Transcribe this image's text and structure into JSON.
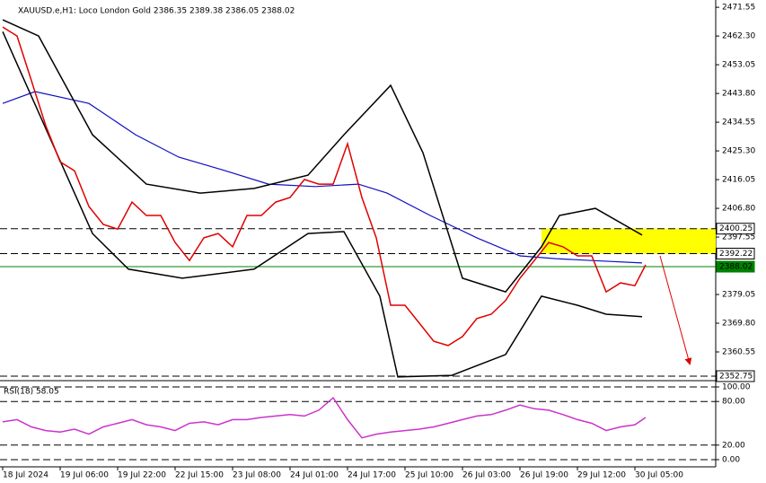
{
  "chart_data": [
    {
      "type": "line",
      "title": "XAUUSD.e,H1:  Loco London Gold  2386.35 2389.38 2386.05 2388.02",
      "xlim": [
        -0.75,
        198.5
      ],
      "ylim": [
        2351.3,
        2473.9
      ],
      "xticks": [
        {
          "value": 0,
          "label": "18 Jul 2024"
        },
        {
          "value": 16,
          "label": "19 Jul 06:00"
        },
        {
          "value": 32,
          "label": "19 Jul 22:00"
        },
        {
          "value": 48,
          "label": "22 Jul 15:00"
        },
        {
          "value": 64,
          "label": "23 Jul 08:00"
        },
        {
          "value": 80,
          "label": "24 Jul 01:00"
        },
        {
          "value": 96,
          "label": "24 Jul 17:00"
        },
        {
          "value": 112,
          "label": "25 Jul 10:00"
        },
        {
          "value": 128,
          "label": "26 Jul 03:00"
        },
        {
          "value": 144,
          "label": "26 Jul 19:00"
        },
        {
          "value": 160,
          "label": "29 Jul 12:00"
        },
        {
          "value": 176,
          "label": "30 Jul 05:00"
        }
      ],
      "yticks": [
        2471.55,
        {
          "value": 2462.3,
          "label": "2462.30"
        },
        2453.05,
        {
          "value": 2443.8,
          "label": "2443.80"
        },
        2434.55,
        {
          "value": 2425.3,
          "label": "2425.30"
        },
        2416.05,
        {
          "value": 2406.8,
          "label": "2406.80"
        },
        2397.55,
        2379.05,
        {
          "value": 2369.8,
          "label": "2369.80"
        },
        2360.55
      ],
      "series": [
        {
          "color": "#1010c0",
          "x": [
            0,
            9,
            24,
            37,
            49,
            62,
            74,
            87,
            99,
            107,
            119,
            132,
            144,
            154,
            164,
            178
          ],
          "values": [
            2440.6,
            2444.4,
            2440.6,
            2430.5,
            2423.3,
            2418.9,
            2414.6,
            2413.8,
            2414.6,
            2411.7,
            2404.5,
            2397.3,
            2391.5,
            2390.6,
            2390.0,
            2389.2
          ]
        },
        {
          "color": "#000000",
          "x": [
            0,
            10,
            25,
            40,
            55,
            70,
            85,
            95,
            108,
            117,
            128,
            140,
            150,
            155,
            165,
            178
          ],
          "values": [
            2467.5,
            2462.3,
            2430.5,
            2414.6,
            2411.7,
            2413.2,
            2417.5,
            2430.5,
            2446.4,
            2424.7,
            2384.3,
            2379.9,
            2394.4,
            2404.5,
            2406.8,
            2398.2
          ]
        },
        {
          "color": "#000000",
          "x": [
            0,
            15,
            25,
            35,
            50,
            70,
            85,
            95,
            105,
            110,
            125,
            140,
            150,
            160,
            168,
            178
          ],
          "values": [
            2463.7,
            2424.7,
            2398.7,
            2387.2,
            2384.3,
            2387.2,
            2398.7,
            2399.3,
            2378.5,
            2352.5,
            2353.0,
            2359.7,
            2378.5,
            2375.6,
            2372.7,
            2371.9
          ]
        },
        {
          "color": "#e00000",
          "x": [
            0,
            4,
            8,
            12,
            16,
            20,
            24,
            28,
            32,
            36,
            40,
            44,
            48,
            52,
            56,
            60,
            64,
            68,
            72,
            76,
            80,
            84,
            88,
            92,
            96,
            100,
            104,
            108,
            112,
            116,
            120,
            124,
            128,
            132,
            136,
            140,
            144,
            148,
            152,
            156,
            160,
            164,
            168,
            172,
            176,
            179
          ],
          "values": [
            2465.2,
            2462.3,
            2447.9,
            2433.4,
            2421.8,
            2418.9,
            2407.4,
            2401.6,
            2400.1,
            2408.8,
            2404.5,
            2404.5,
            2395.8,
            2390.0,
            2397.3,
            2398.7,
            2394.4,
            2404.5,
            2404.5,
            2408.8,
            2410.3,
            2416.1,
            2414.6,
            2414.6,
            2427.6,
            2410.3,
            2397.3,
            2375.6,
            2375.6,
            2369.8,
            2364.0,
            2362.6,
            2365.5,
            2371.3,
            2372.7,
            2377.1,
            2384.3,
            2390.0,
            2395.8,
            2394.4,
            2391.5,
            2391.5,
            2379.9,
            2382.8,
            2381.9,
            2388.6
          ]
        }
      ],
      "levels": [
        {
          "value": 2400.25,
          "color": "#000000",
          "style": "dashed"
        },
        {
          "value": 2392.22,
          "color": "#000000",
          "style": "dashed"
        },
        {
          "value": 2388.02,
          "color": "#008000",
          "style": "solid"
        },
        {
          "value": 2352.75,
          "color": "#000000",
          "style": "dashed"
        }
      ],
      "zone": {
        "color": "#ffff00",
        "x": [
          150,
          198.5
        ],
        "y": [
          2392.22,
          2400.25
        ]
      }
    },
    {
      "type": "line",
      "title": "RSI(18) 58.05",
      "xlim": [
        -0.75,
        198.5
      ],
      "ylim": [
        -9.9,
        103.7
      ],
      "yticks": [
        {
          "value": 100,
          "label": "100.00"
        },
        {
          "value": 80,
          "label": "80.00"
        },
        {
          "value": 20,
          "label": "20.00"
        },
        {
          "value": 0,
          "label": "0.00"
        }
      ],
      "series": [
        {
          "color": "#cc33cc",
          "x": [
            0,
            4,
            8,
            12,
            16,
            20,
            24,
            28,
            32,
            36,
            40,
            44,
            48,
            52,
            56,
            60,
            64,
            68,
            72,
            76,
            80,
            84,
            88,
            92,
            96,
            100,
            104,
            108,
            112,
            116,
            120,
            124,
            128,
            132,
            136,
            140,
            144,
            148,
            152,
            156,
            160,
            164,
            168,
            172,
            176,
            179
          ],
          "values": [
            52,
            55,
            45,
            40,
            38,
            42,
            35,
            45,
            50,
            55,
            48,
            45,
            40,
            50,
            52,
            48,
            55,
            55,
            58,
            60,
            62,
            60,
            68,
            85,
            55,
            30,
            35,
            38,
            40,
            42,
            45,
            50,
            55,
            60,
            62,
            68,
            75,
            70,
            68,
            62,
            55,
            50,
            40,
            45,
            48,
            58
          ]
        }
      ],
      "levels": [
        {
          "value": 100,
          "color": "#000000",
          "style": "dashed"
        },
        {
          "value": 80,
          "color": "#000000",
          "style": "dashed"
        },
        {
          "value": 20,
          "color": "#000000",
          "style": "dashed"
        },
        {
          "value": 0,
          "color": "#000000",
          "style": "dashed"
        }
      ]
    }
  ]
}
